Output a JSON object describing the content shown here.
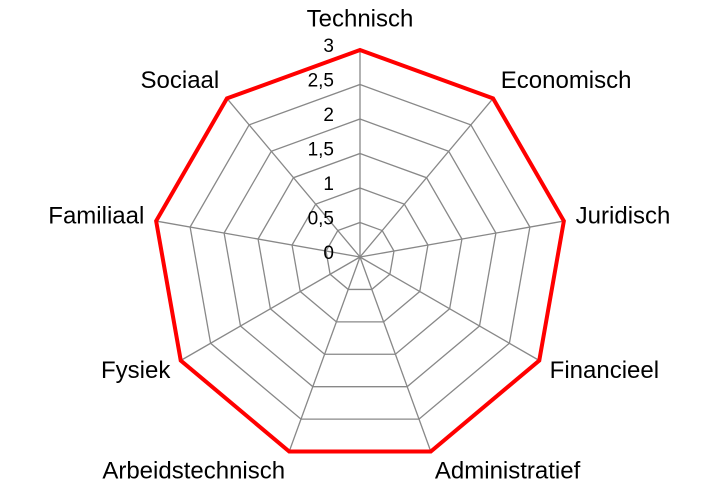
{
  "chart_data": {
    "type": "radar",
    "categories": [
      "Technisch",
      "Economisch",
      "Juridisch",
      "Financieel",
      "Administratief",
      "Arbeidstechnisch",
      "Fysiek",
      "Familiaal",
      "Sociaal"
    ],
    "series": [
      {
        "color": "#ff0000",
        "values": [
          3,
          3,
          3,
          3,
          3,
          3,
          3,
          3,
          3
        ]
      }
    ],
    "ylim": [
      0,
      3
    ],
    "yticks": [
      0,
      {
        "value": 0.5,
        "label": "0,5"
      },
      1,
      {
        "value": 1.5,
        "label": "1,5"
      },
      2,
      {
        "value": 2.5,
        "label": "2,5"
      },
      3
    ],
    "grid": true,
    "grid_color": "#888888"
  }
}
